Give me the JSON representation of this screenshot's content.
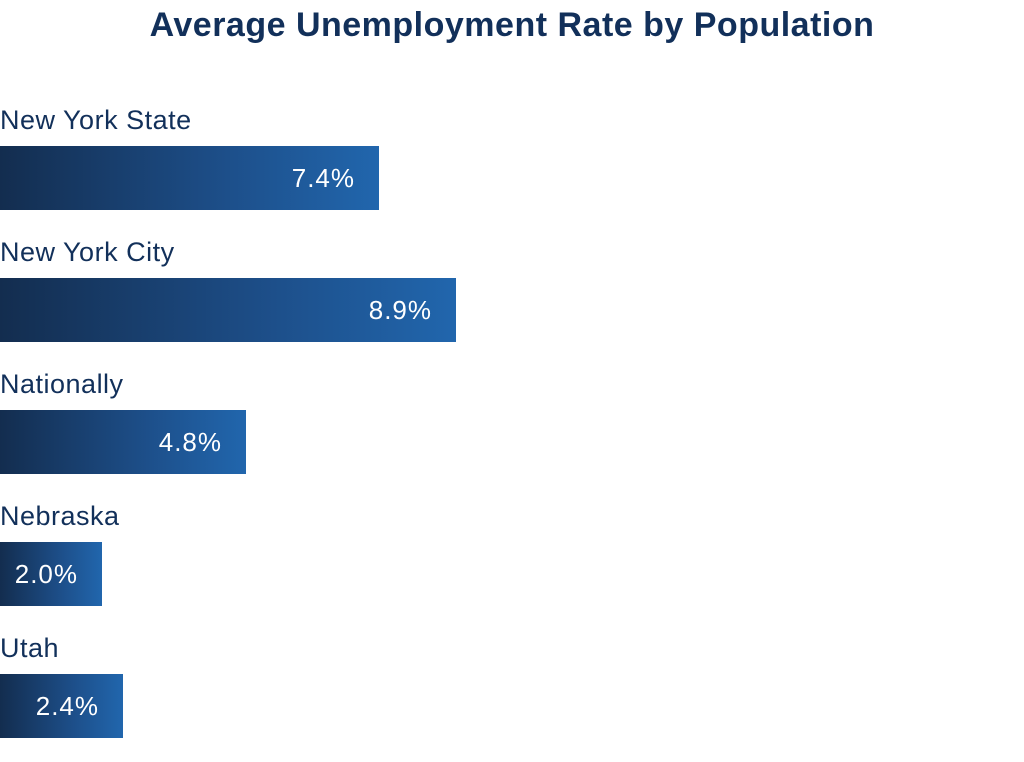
{
  "chart_data": {
    "type": "bar",
    "orientation": "horizontal",
    "title": "Average Unemployment Rate by Population",
    "categories": [
      "New York State",
      "New York City",
      "Nationally",
      "Nebraska",
      "Utah"
    ],
    "values": [
      7.4,
      8.9,
      4.8,
      2.0,
      2.4
    ],
    "value_labels": [
      "7.4%",
      "8.9%",
      "4.8%",
      "2.0%",
      "2.4%"
    ],
    "unit": "%",
    "xlim": [
      0,
      20
    ],
    "grid": false,
    "legend": "none",
    "colors": {
      "bar_start": "#132d4f",
      "bar_end": "#2166ad",
      "title": "#12305a",
      "label": "#12305a",
      "value_text": "#ffffff"
    }
  }
}
